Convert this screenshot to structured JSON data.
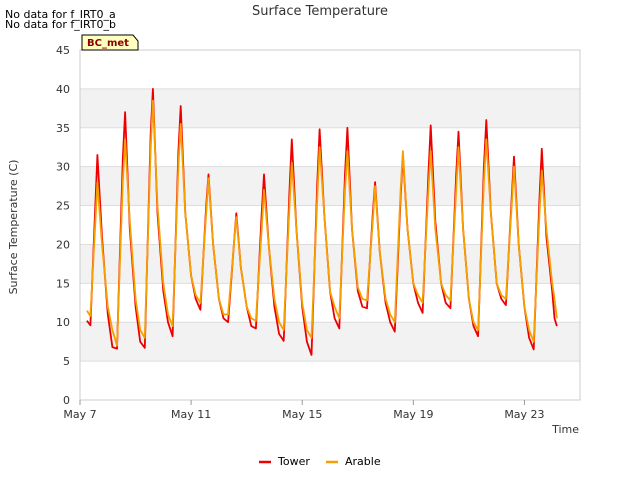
{
  "notes": [
    "No data for f_IRT0_a",
    "No data for f_IRT0_b"
  ],
  "badge": "BC_met",
  "chart_data": {
    "type": "line",
    "title": "Surface Temperature",
    "xlabel": "Time",
    "ylabel": "Surface Temperature (C)",
    "ylim": [
      0,
      45
    ],
    "yticks": [
      0,
      5,
      10,
      15,
      20,
      25,
      30,
      35,
      40,
      45
    ],
    "xlim": [
      "2024-05-07",
      "2024-05-25T00:00"
    ],
    "xticks": [
      {
        "date": "2024-05-07",
        "label": "May 7"
      },
      {
        "date": "2024-05-11",
        "label": "May 11"
      },
      {
        "date": "2024-05-15",
        "label": "May 15"
      },
      {
        "date": "2024-05-19",
        "label": "May 19"
      },
      {
        "date": "2024-05-23",
        "label": "May 23"
      }
    ],
    "grid": true,
    "legend": "bottom-center",
    "series": [
      {
        "name": "Tower",
        "color": "#ee0000",
        "points": [
          [
            "2024-05-07T06:00",
            10.2
          ],
          [
            "2024-05-07T09:00",
            9.6
          ],
          [
            "2024-05-07T13:00",
            24
          ],
          [
            "2024-05-07T15:00",
            31.5
          ],
          [
            "2024-05-07T19:00",
            21
          ],
          [
            "2024-05-08T00:00",
            11
          ],
          [
            "2024-05-08T04:00",
            6.8
          ],
          [
            "2024-05-08T08:00",
            6.6
          ],
          [
            "2024-05-08T13:00",
            31
          ],
          [
            "2024-05-08T15:00",
            37
          ],
          [
            "2024-05-08T19:00",
            22
          ],
          [
            "2024-05-09T00:00",
            12
          ],
          [
            "2024-05-09T04:00",
            7.5
          ],
          [
            "2024-05-09T08:00",
            6.7
          ],
          [
            "2024-05-09T13:00",
            34
          ],
          [
            "2024-05-09T15:00",
            40
          ],
          [
            "2024-05-09T19:00",
            24
          ],
          [
            "2024-05-10T00:00",
            14
          ],
          [
            "2024-05-10T04:00",
            10
          ],
          [
            "2024-05-10T08:00",
            8.2
          ],
          [
            "2024-05-10T13:00",
            32
          ],
          [
            "2024-05-10T15:00",
            37.8
          ],
          [
            "2024-05-10T19:00",
            24
          ],
          [
            "2024-05-11T00:00",
            16
          ],
          [
            "2024-05-11T04:00",
            13
          ],
          [
            "2024-05-11T08:00",
            11.6
          ],
          [
            "2024-05-11T13:00",
            25
          ],
          [
            "2024-05-11T15:00",
            29
          ],
          [
            "2024-05-11T19:00",
            20
          ],
          [
            "2024-05-12T00:00",
            13
          ],
          [
            "2024-05-12T04:00",
            10.5
          ],
          [
            "2024-05-12T08:00",
            10
          ],
          [
            "2024-05-12T13:00",
            20
          ],
          [
            "2024-05-12T15:00",
            24
          ],
          [
            "2024-05-12T19:00",
            17
          ],
          [
            "2024-05-13T00:00",
            12
          ],
          [
            "2024-05-13T04:00",
            9.5
          ],
          [
            "2024-05-13T08:00",
            9.2
          ],
          [
            "2024-05-13T13:00",
            24
          ],
          [
            "2024-05-13T15:00",
            29
          ],
          [
            "2024-05-13T19:00",
            20
          ],
          [
            "2024-05-14T00:00",
            12
          ],
          [
            "2024-05-14T04:00",
            8.5
          ],
          [
            "2024-05-14T08:00",
            7.6
          ],
          [
            "2024-05-14T13:00",
            27
          ],
          [
            "2024-05-14T15:00",
            33.5
          ],
          [
            "2024-05-14T19:00",
            22
          ],
          [
            "2024-05-15T00:00",
            12
          ],
          [
            "2024-05-15T04:00",
            7.5
          ],
          [
            "2024-05-15T08:00",
            5.8
          ],
          [
            "2024-05-15T13:00",
            28
          ],
          [
            "2024-05-15T15:00",
            34.8
          ],
          [
            "2024-05-15T19:00",
            24
          ],
          [
            "2024-05-16T00:00",
            14
          ],
          [
            "2024-05-16T04:00",
            10.5
          ],
          [
            "2024-05-16T08:00",
            9.2
          ],
          [
            "2024-05-16T13:00",
            29
          ],
          [
            "2024-05-16T15:00",
            35
          ],
          [
            "2024-05-16T19:00",
            22
          ],
          [
            "2024-05-17T00:00",
            14
          ],
          [
            "2024-05-17T04:00",
            12
          ],
          [
            "2024-05-17T08:00",
            11.8
          ],
          [
            "2024-05-17T13:00",
            24
          ],
          [
            "2024-05-17T15:00",
            28
          ],
          [
            "2024-05-17T19:00",
            19
          ],
          [
            "2024-05-18T00:00",
            12.5
          ],
          [
            "2024-05-18T04:00",
            10
          ],
          [
            "2024-05-18T08:00",
            8.8
          ],
          [
            "2024-05-18T13:00",
            26
          ],
          [
            "2024-05-18T15:00",
            31.5
          ],
          [
            "2024-05-18T19:00",
            22
          ],
          [
            "2024-05-19T00:00",
            15
          ],
          [
            "2024-05-19T04:00",
            12.5
          ],
          [
            "2024-05-19T08:00",
            11.2
          ],
          [
            "2024-05-19T13:00",
            29
          ],
          [
            "2024-05-19T15:00",
            35.3
          ],
          [
            "2024-05-19T19:00",
            23
          ],
          [
            "2024-05-20T00:00",
            15
          ],
          [
            "2024-05-20T04:00",
            12.5
          ],
          [
            "2024-05-20T08:00",
            11.8
          ],
          [
            "2024-05-20T13:00",
            29
          ],
          [
            "2024-05-20T15:00",
            34.5
          ],
          [
            "2024-05-20T19:00",
            22
          ],
          [
            "2024-05-21T00:00",
            13
          ],
          [
            "2024-05-21T04:00",
            9.5
          ],
          [
            "2024-05-21T08:00",
            8.2
          ],
          [
            "2024-05-21T13:00",
            30
          ],
          [
            "2024-05-21T15:00",
            36
          ],
          [
            "2024-05-21T19:00",
            24
          ],
          [
            "2024-05-22T00:00",
            15
          ],
          [
            "2024-05-22T04:00",
            13
          ],
          [
            "2024-05-22T08:00",
            12.2
          ],
          [
            "2024-05-22T13:00",
            26
          ],
          [
            "2024-05-22T15:00",
            31.3
          ],
          [
            "2024-05-22T19:00",
            20
          ],
          [
            "2024-05-23T00:00",
            12
          ],
          [
            "2024-05-23T04:00",
            8
          ],
          [
            "2024-05-23T08:00",
            6.5
          ],
          [
            "2024-05-23T13:00",
            26
          ],
          [
            "2024-05-23T15:00",
            32.3
          ],
          [
            "2024-05-23T19:00",
            21
          ],
          [
            "2024-05-24T00:00",
            14
          ],
          [
            "2024-05-24T02:00",
            10.5
          ],
          [
            "2024-05-24T04:00",
            9.5
          ]
        ]
      },
      {
        "name": "Arable",
        "color": "#f5a000",
        "points": [
          [
            "2024-05-07T06:00",
            11.5
          ],
          [
            "2024-05-07T09:00",
            10.8
          ],
          [
            "2024-05-07T13:00",
            22
          ],
          [
            "2024-05-07T15:00",
            28
          ],
          [
            "2024-05-07T19:00",
            20
          ],
          [
            "2024-05-08T00:00",
            12
          ],
          [
            "2024-05-08T04:00",
            9
          ],
          [
            "2024-05-08T08:00",
            7
          ],
          [
            "2024-05-08T13:00",
            28
          ],
          [
            "2024-05-08T15:00",
            33.5
          ],
          [
            "2024-05-08T19:00",
            23
          ],
          [
            "2024-05-09T00:00",
            13
          ],
          [
            "2024-05-09T04:00",
            9
          ],
          [
            "2024-05-09T08:00",
            8
          ],
          [
            "2024-05-09T13:00",
            32
          ],
          [
            "2024-05-09T15:00",
            38.5
          ],
          [
            "2024-05-09T19:00",
            25
          ],
          [
            "2024-05-10T00:00",
            15
          ],
          [
            "2024-05-10T04:00",
            11
          ],
          [
            "2024-05-10T08:00",
            9.5
          ],
          [
            "2024-05-10T13:00",
            30
          ],
          [
            "2024-05-10T15:00",
            35.5
          ],
          [
            "2024-05-10T19:00",
            24
          ],
          [
            "2024-05-11T00:00",
            16
          ],
          [
            "2024-05-11T04:00",
            13.5
          ],
          [
            "2024-05-11T08:00",
            12.5
          ],
          [
            "2024-05-11T13:00",
            24
          ],
          [
            "2024-05-11T15:00",
            28.5
          ],
          [
            "2024-05-11T19:00",
            20
          ],
          [
            "2024-05-12T00:00",
            13
          ],
          [
            "2024-05-12T04:00",
            11
          ],
          [
            "2024-05-12T08:00",
            11
          ],
          [
            "2024-05-12T13:00",
            20
          ],
          [
            "2024-05-12T15:00",
            23.5
          ],
          [
            "2024-05-12T19:00",
            17
          ],
          [
            "2024-05-13T00:00",
            12
          ],
          [
            "2024-05-13T04:00",
            10.5
          ],
          [
            "2024-05-13T08:00",
            10.2
          ],
          [
            "2024-05-13T13:00",
            22
          ],
          [
            "2024-05-13T15:00",
            27
          ],
          [
            "2024-05-13T19:00",
            20
          ],
          [
            "2024-05-14T00:00",
            13
          ],
          [
            "2024-05-14T04:00",
            10
          ],
          [
            "2024-05-14T08:00",
            9
          ],
          [
            "2024-05-14T13:00",
            25
          ],
          [
            "2024-05-14T15:00",
            30.5
          ],
          [
            "2024-05-14T19:00",
            22
          ],
          [
            "2024-05-15T00:00",
            12.5
          ],
          [
            "2024-05-15T04:00",
            9
          ],
          [
            "2024-05-15T08:00",
            8
          ],
          [
            "2024-05-15T13:00",
            26
          ],
          [
            "2024-05-15T15:00",
            32.5
          ],
          [
            "2024-05-15T19:00",
            24
          ],
          [
            "2024-05-16T00:00",
            14
          ],
          [
            "2024-05-16T04:00",
            12
          ],
          [
            "2024-05-16T08:00",
            10.5
          ],
          [
            "2024-05-16T13:00",
            27
          ],
          [
            "2024-05-16T15:00",
            32
          ],
          [
            "2024-05-16T19:00",
            22
          ],
          [
            "2024-05-17T00:00",
            14.5
          ],
          [
            "2024-05-17T04:00",
            13
          ],
          [
            "2024-05-17T08:00",
            12.8
          ],
          [
            "2024-05-17T13:00",
            23
          ],
          [
            "2024-05-17T15:00",
            27.5
          ],
          [
            "2024-05-17T19:00",
            19
          ],
          [
            "2024-05-18T00:00",
            13
          ],
          [
            "2024-05-18T04:00",
            11
          ],
          [
            "2024-05-18T08:00",
            10
          ],
          [
            "2024-05-18T13:00",
            27
          ],
          [
            "2024-05-18T15:00",
            32
          ],
          [
            "2024-05-18T19:00",
            22
          ],
          [
            "2024-05-19T00:00",
            15
          ],
          [
            "2024-05-19T04:00",
            13.5
          ],
          [
            "2024-05-19T08:00",
            12.5
          ],
          [
            "2024-05-19T13:00",
            27
          ],
          [
            "2024-05-19T15:00",
            32
          ],
          [
            "2024-05-19T19:00",
            22
          ],
          [
            "2024-05-20T00:00",
            15
          ],
          [
            "2024-05-20T04:00",
            13.5
          ],
          [
            "2024-05-20T08:00",
            12.8
          ],
          [
            "2024-05-20T13:00",
            27
          ],
          [
            "2024-05-20T15:00",
            32.5
          ],
          [
            "2024-05-20T19:00",
            22
          ],
          [
            "2024-05-21T00:00",
            13
          ],
          [
            "2024-05-21T04:00",
            10
          ],
          [
            "2024-05-21T08:00",
            9
          ],
          [
            "2024-05-21T13:00",
            28
          ],
          [
            "2024-05-21T15:00",
            33.5
          ],
          [
            "2024-05-21T19:00",
            24
          ],
          [
            "2024-05-22T00:00",
            15
          ],
          [
            "2024-05-22T04:00",
            13.5
          ],
          [
            "2024-05-22T08:00",
            13
          ],
          [
            "2024-05-22T13:00",
            25
          ],
          [
            "2024-05-22T15:00",
            30
          ],
          [
            "2024-05-22T19:00",
            20
          ],
          [
            "2024-05-23T00:00",
            12
          ],
          [
            "2024-05-23T04:00",
            9
          ],
          [
            "2024-05-23T08:00",
            7.5
          ],
          [
            "2024-05-23T13:00",
            24
          ],
          [
            "2024-05-23T15:00",
            29.5
          ],
          [
            "2024-05-23T19:00",
            22
          ],
          [
            "2024-05-24T00:00",
            15
          ],
          [
            "2024-05-24T02:00",
            13
          ],
          [
            "2024-05-24T04:00",
            10.5
          ]
        ]
      }
    ]
  }
}
